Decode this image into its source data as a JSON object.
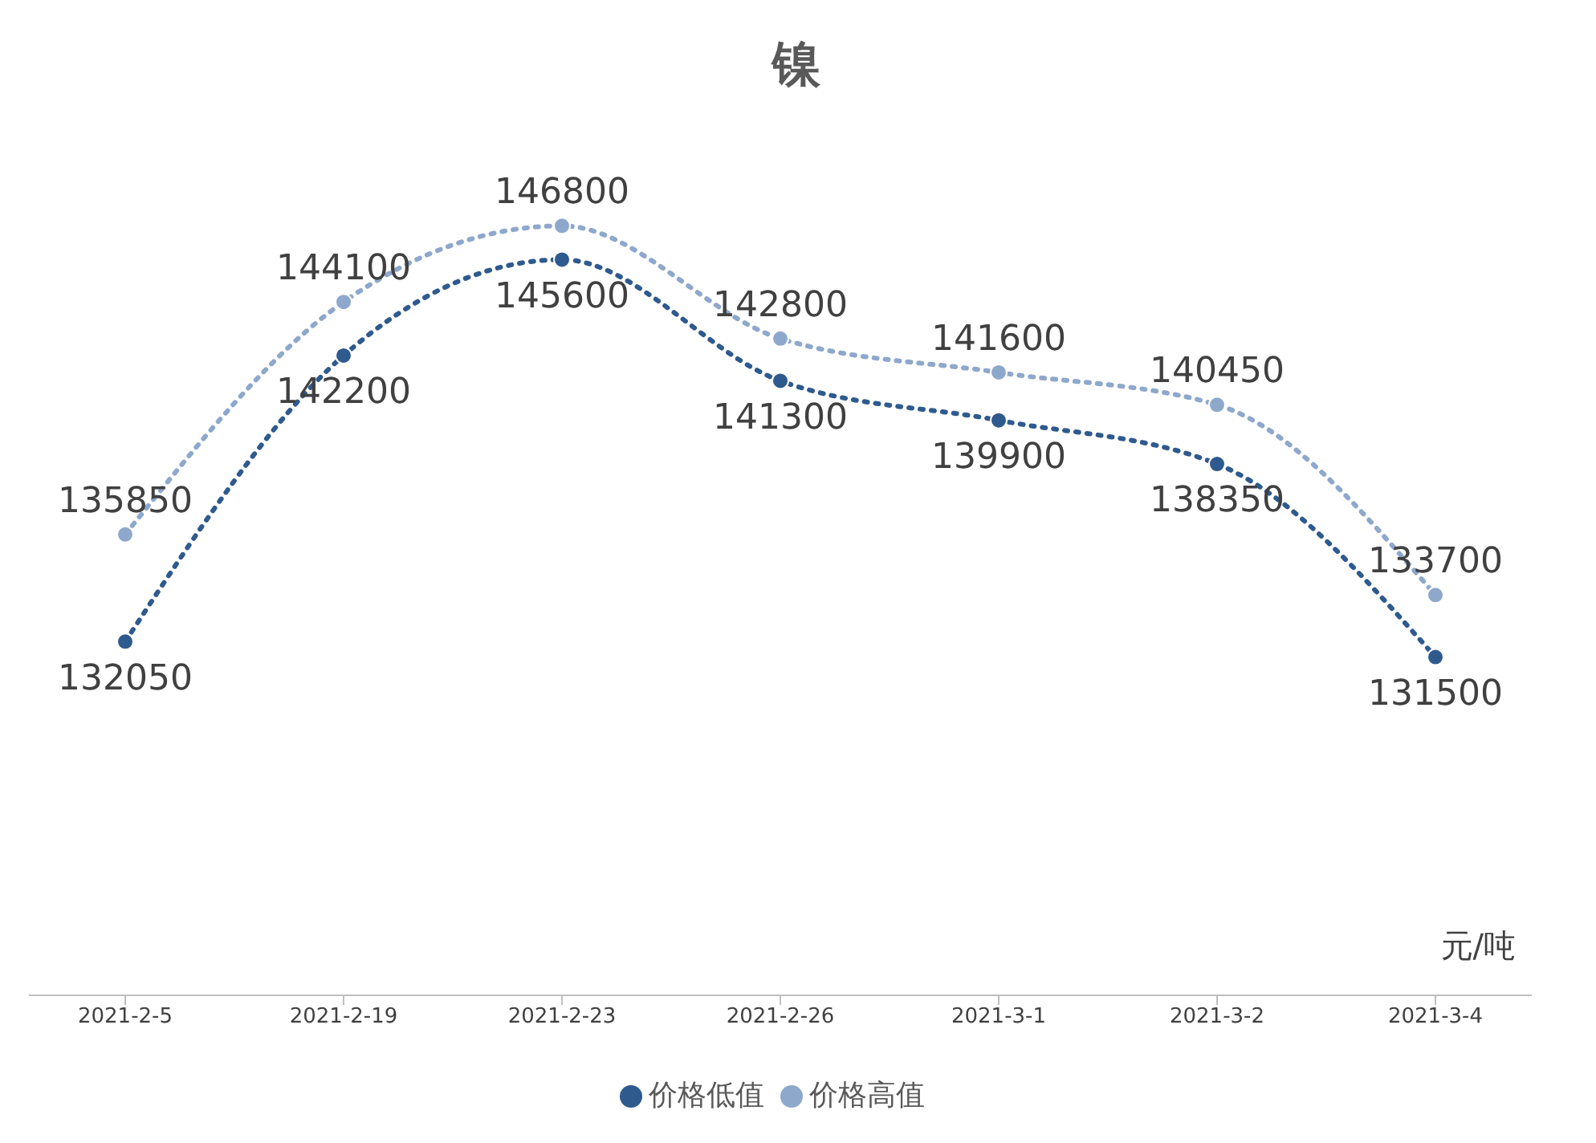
{
  "chart_data": {
    "type": "line",
    "title": "镍",
    "categories": [
      "2021-2-5",
      "2021-2-19",
      "2021-2-23",
      "2021-2-26",
      "2021-3-1",
      "2021-3-2",
      "2021-3-4"
    ],
    "series": [
      {
        "name": "价格低值",
        "color": "#2e5a8e",
        "values": [
          132050,
          142200,
          145600,
          141300,
          139900,
          138350,
          131500
        ]
      },
      {
        "name": "价格高值",
        "color": "#8ea8cc",
        "values": [
          135850,
          144100,
          146800,
          142800,
          141600,
          140450,
          133700
        ]
      }
    ],
    "tick_labels": "x",
    "data_labels": true,
    "marker": "circle",
    "line_style": "dotted",
    "legend": "bottom",
    "annotations": [
      "元/吨"
    ]
  }
}
